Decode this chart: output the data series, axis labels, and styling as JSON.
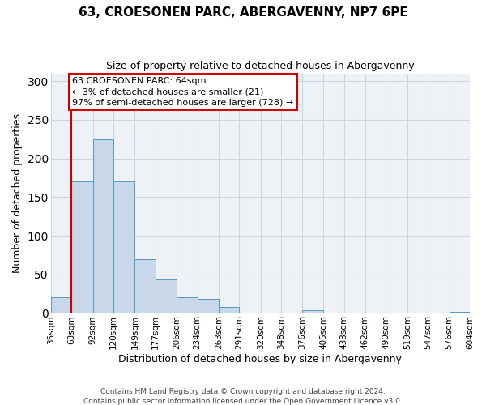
{
  "title": "63, CROESONEN PARC, ABERGAVENNY, NP7 6PE",
  "subtitle": "Size of property relative to detached houses in Abergavenny",
  "xlabel": "Distribution of detached houses by size in Abergavenny",
  "ylabel": "Number of detached properties",
  "bar_color": "#c8d8e8",
  "bar_edge_color": "#5a9abf",
  "background_color": "#eef2f7",
  "grid_color": "#ccd6e0",
  "annotation_box_color": "#cc0000",
  "vline_color": "#cc0000",
  "bin_edges": [
    35,
    63,
    92,
    120,
    149,
    177,
    206,
    234,
    263,
    291,
    320,
    348,
    376,
    405,
    433,
    462,
    490,
    519,
    547,
    576,
    604
  ],
  "bin_labels": [
    "35sqm",
    "63sqm",
    "92sqm",
    "120sqm",
    "149sqm",
    "177sqm",
    "206sqm",
    "234sqm",
    "263sqm",
    "291sqm",
    "320sqm",
    "348sqm",
    "376sqm",
    "405sqm",
    "433sqm",
    "462sqm",
    "490sqm",
    "519sqm",
    "547sqm",
    "576sqm",
    "604sqm"
  ],
  "counts": [
    20,
    170,
    225,
    170,
    70,
    43,
    20,
    18,
    8,
    1,
    1,
    0,
    4,
    0,
    0,
    0,
    0,
    0,
    0,
    2
  ],
  "vline_x": 63,
  "annotation_title": "63 CROESONEN PARC: 64sqm",
  "annotation_line1": "← 3% of detached houses are smaller (21)",
  "annotation_line2": "97% of semi-detached houses are larger (728) →",
  "ylim": [
    0,
    310
  ],
  "yticks": [
    0,
    50,
    100,
    150,
    200,
    250,
    300
  ],
  "footer1": "Contains HM Land Registry data © Crown copyright and database right 2024.",
  "footer2": "Contains public sector information licensed under the Open Government Licence v3.0."
}
